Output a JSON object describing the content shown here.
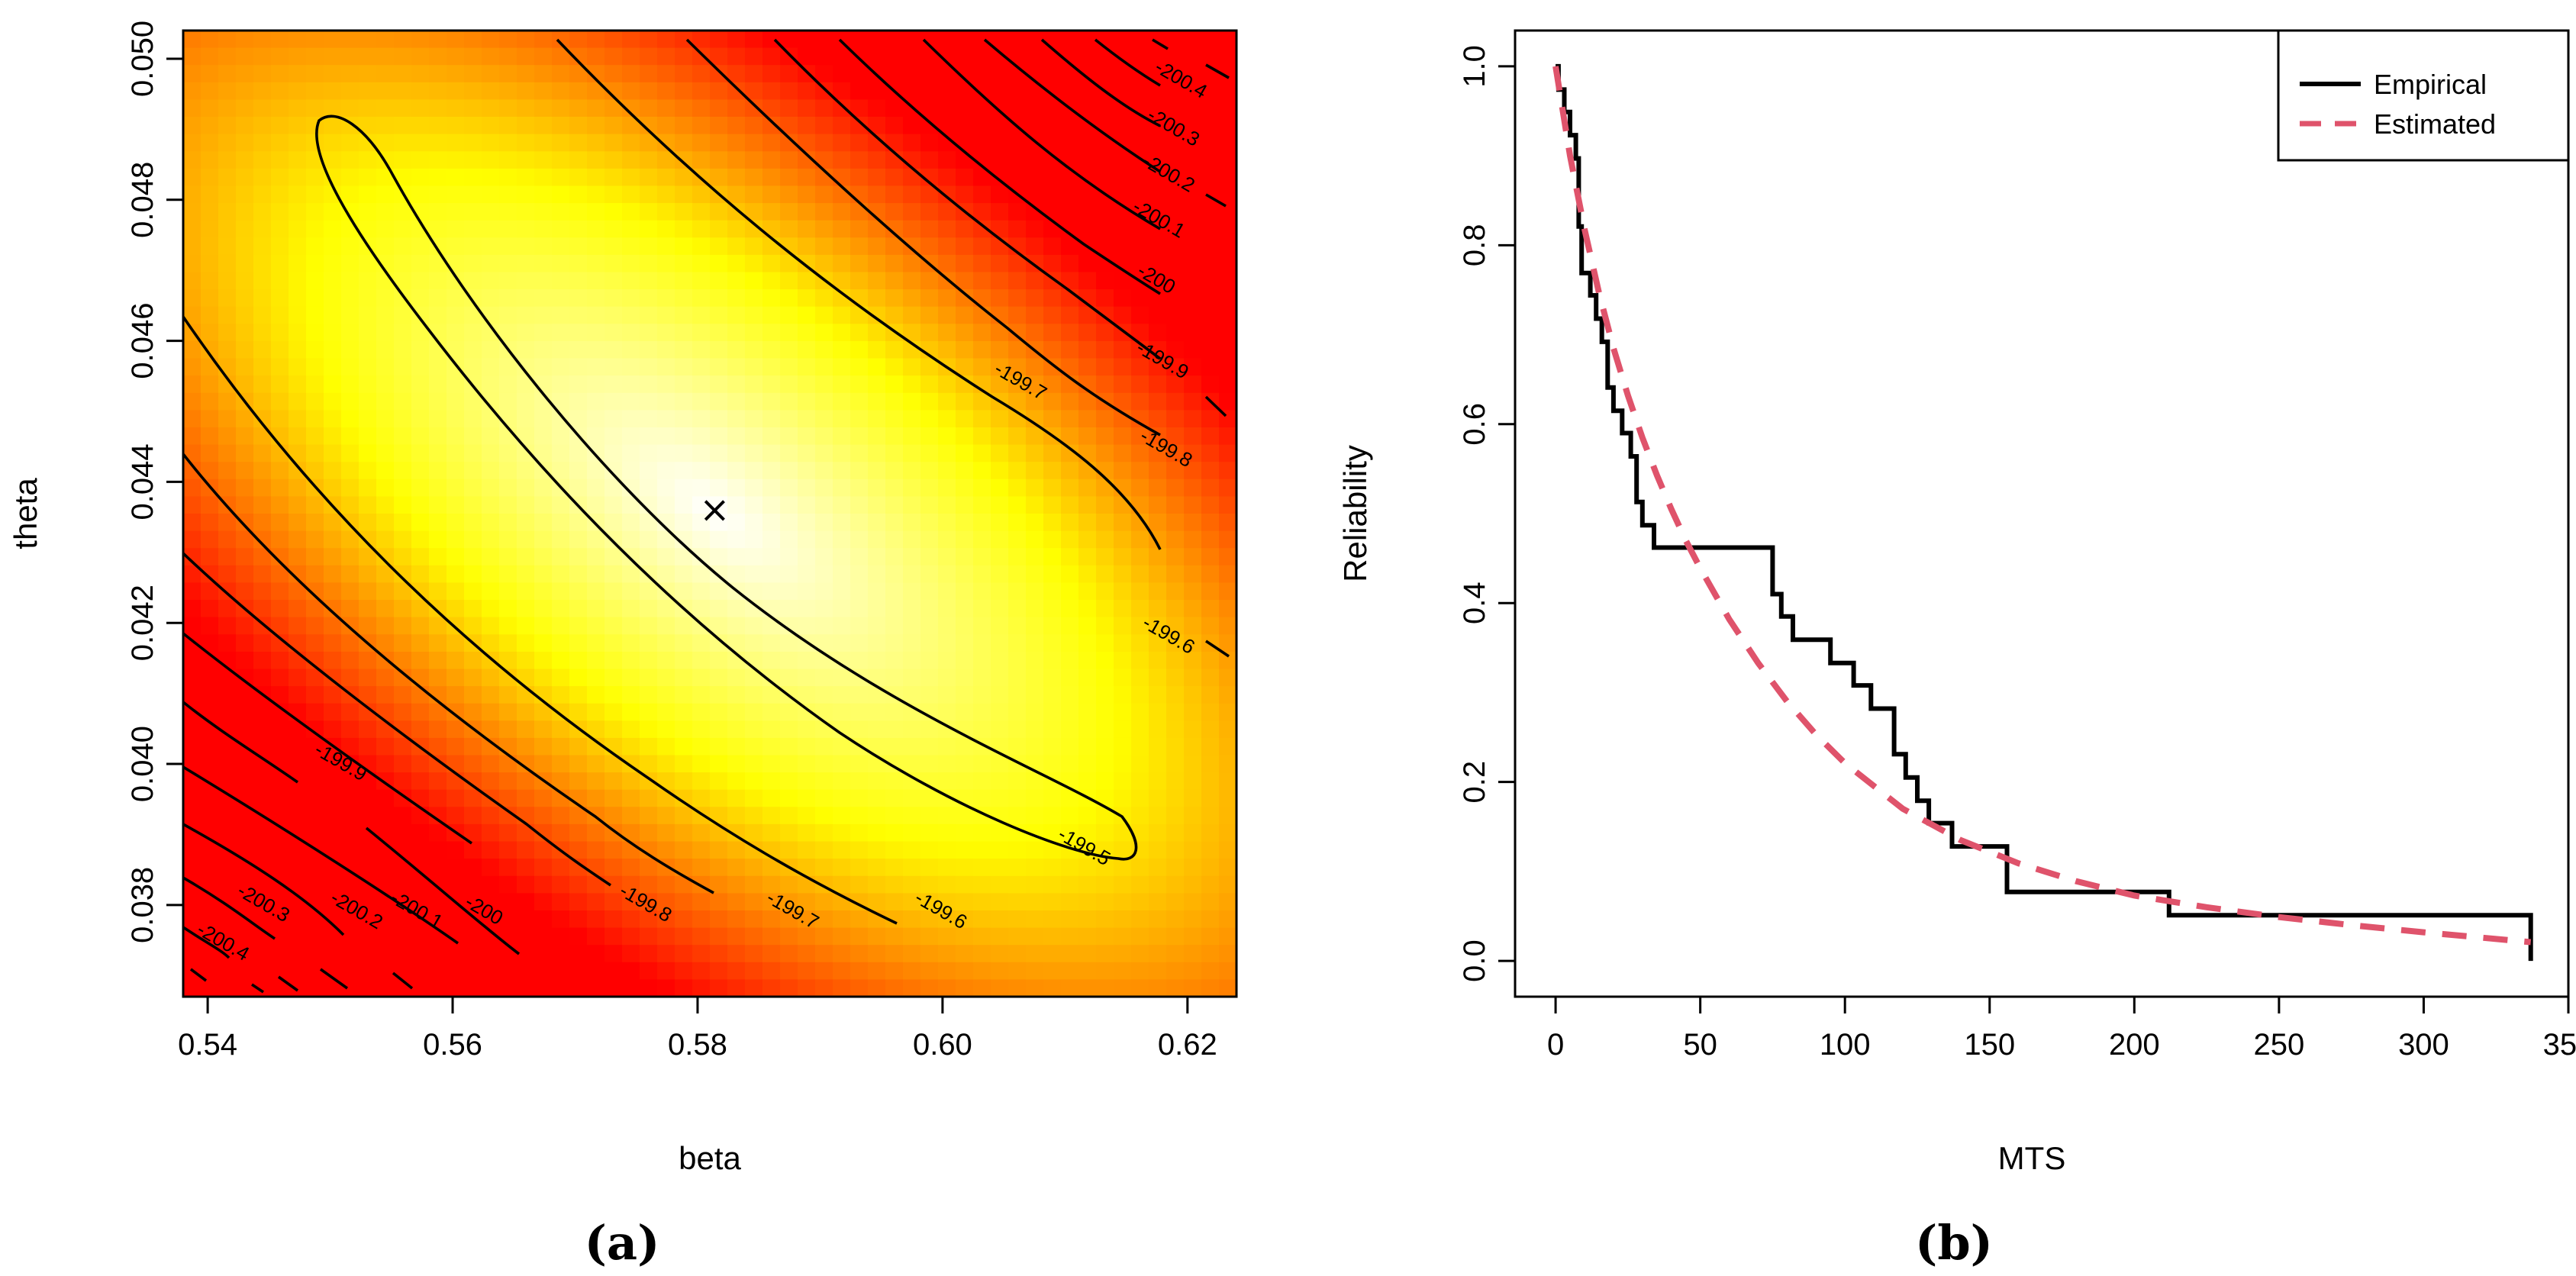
{
  "colors": {
    "heat_high": "#ffffff",
    "heat_mid": "#ffff00",
    "heat_low": "#ff0000",
    "empirical": "#000000",
    "estimated": "#df536b"
  },
  "chart_data": [
    {
      "type": "heatmap",
      "panel_label": "(a)",
      "xlabel": "beta",
      "ylabel": "theta",
      "xlim": [
        0.538,
        0.624
      ],
      "ylim": [
        0.0367,
        0.0504
      ],
      "x_ticks": [
        0.54,
        0.56,
        0.58,
        0.6,
        0.62
      ],
      "x_tick_labels": [
        "0.54",
        "0.56",
        "0.58",
        "0.60",
        "0.62"
      ],
      "y_ticks": [
        0.038,
        0.04,
        0.042,
        0.044,
        0.046,
        0.048,
        0.05
      ],
      "y_tick_labels": [
        "0.038",
        "0.040",
        "0.042",
        "0.044",
        "0.046",
        "0.048",
        "0.050"
      ],
      "surface": "log-likelihood",
      "maximum": {
        "beta": 0.5814,
        "theta": 0.04358,
        "marker": "×"
      },
      "contour_levels": [
        -199.5,
        -199.6,
        -199.7,
        -199.8,
        -199.9,
        -200,
        -200.1,
        -200.2,
        -200.3,
        -200.4
      ],
      "contour_labels": [
        {
          "text": "-199.5",
          "beta": 0.6113,
          "theta": 0.03875
        },
        {
          "text": "-199.6",
          "beta": 0.5996,
          "theta": 0.03785
        },
        {
          "text": "-199.7",
          "beta": 0.5875,
          "theta": 0.03785
        },
        {
          "text": "-199.8",
          "beta": 0.5755,
          "theta": 0.03795
        },
        {
          "text": "-200",
          "beta": 0.5623,
          "theta": 0.03785
        },
        {
          "text": "-200.1",
          "beta": 0.5568,
          "theta": 0.03785
        },
        {
          "text": "-200.2",
          "beta": 0.5519,
          "theta": 0.03785
        },
        {
          "text": "-200.3",
          "beta": 0.5443,
          "theta": 0.03795
        },
        {
          "text": "-200.4",
          "beta": 0.541,
          "theta": 0.0374
        },
        {
          "text": "-199.9",
          "beta": 0.5506,
          "theta": 0.03995
        },
        {
          "text": "-199.6",
          "beta": 0.6182,
          "theta": 0.04175
        },
        {
          "text": "-199.7",
          "beta": 0.6061,
          "theta": 0.04535
        },
        {
          "text": "-199.8",
          "beta": 0.618,
          "theta": 0.0444
        },
        {
          "text": "-199.9",
          "beta": 0.6177,
          "theta": 0.04565
        },
        {
          "text": "-200",
          "beta": 0.6172,
          "theta": 0.0468
        },
        {
          "text": "-200.1",
          "beta": 0.6174,
          "theta": 0.04765
        },
        {
          "text": "-200.2",
          "beta": 0.6182,
          "theta": 0.0483
        },
        {
          "text": "-200.3",
          "beta": 0.6186,
          "theta": 0.04895
        },
        {
          "text": "-200.4",
          "beta": 0.6192,
          "theta": 0.04963
        }
      ]
    },
    {
      "type": "line",
      "panel_label": "(b)",
      "xlabel": "MTS",
      "ylabel": "Reliability",
      "xlim": [
        -14,
        350
      ],
      "ylim": [
        -0.04,
        1.04
      ],
      "x_ticks": [
        0,
        50,
        100,
        150,
        200,
        250,
        300,
        350
      ],
      "x_tick_labels": [
        "0",
        "50",
        "100",
        "150",
        "200",
        "250",
        "300",
        "350"
      ],
      "y_ticks": [
        0,
        0.2,
        0.4,
        0.6,
        0.8,
        1
      ],
      "y_tick_labels": [
        "0.0",
        "0.2",
        "0.4",
        "0.6",
        "0.8",
        "1.0"
      ],
      "legend": {
        "position": "top-right",
        "entries": [
          "Empirical",
          "Estimated"
        ]
      },
      "series": [
        {
          "name": "Empirical",
          "style": "step",
          "x": [
            1,
            3,
            5,
            7,
            8,
            9,
            12,
            14,
            16,
            18,
            20,
            23,
            26,
            28,
            30,
            34,
            75,
            78,
            82,
            95,
            103,
            109,
            117,
            121,
            125,
            129,
            137,
            156,
            212,
            337
          ],
          "y": [
            0.974,
            0.949,
            0.923,
            0.897,
            0.821,
            0.769,
            0.744,
            0.718,
            0.692,
            0.641,
            0.615,
            0.59,
            0.564,
            0.513,
            0.487,
            0.462,
            0.41,
            0.385,
            0.359,
            0.333,
            0.308,
            0.282,
            0.231,
            0.205,
            0.179,
            0.154,
            0.128,
            0.077,
            0.051,
            0.026
          ]
        },
        {
          "name": "Estimated",
          "style": "dashed",
          "x": [
            0,
            5,
            10,
            15,
            20,
            25,
            30,
            35,
            40,
            45,
            50,
            60,
            70,
            80,
            90,
            100,
            120,
            140,
            160,
            180,
            200,
            225,
            250,
            275,
            300,
            320,
            337
          ],
          "y": [
            1.0,
            0.9,
            0.818,
            0.747,
            0.685,
            0.632,
            0.585,
            0.543,
            0.505,
            0.47,
            0.439,
            0.382,
            0.333,
            0.29,
            0.253,
            0.221,
            0.17,
            0.135,
            0.109,
            0.089,
            0.073,
            0.06,
            0.049,
            0.04,
            0.032,
            0.026,
            0.021
          ]
        }
      ]
    }
  ]
}
